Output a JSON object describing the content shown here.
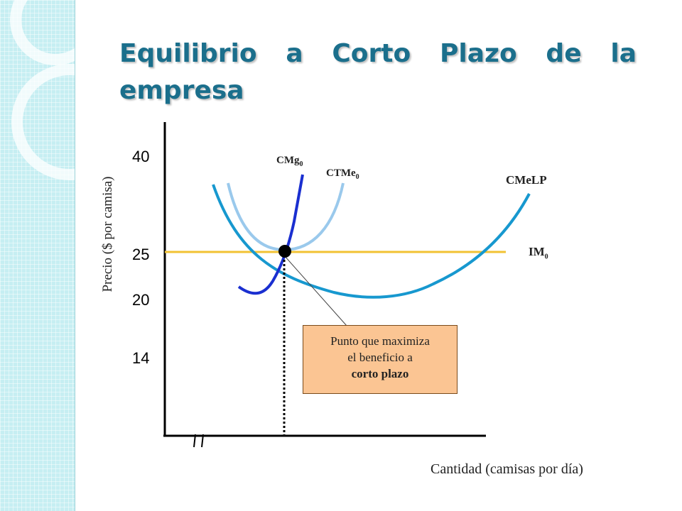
{
  "slide": {
    "title": "Equilibrio a Corto Plazo de la empresa"
  },
  "chart_data": {
    "type": "line",
    "title": "Equilibrio a Corto Plazo de la empresa",
    "xlabel": "Cantidad (camisas por día)",
    "ylabel": "Precio ($ por camisa)",
    "yticks": [
      "40",
      "25",
      "20",
      "14"
    ],
    "series": [
      {
        "name": "CMg",
        "subscript": "0",
        "color": "#1a2fd0"
      },
      {
        "name": "CTMe",
        "subscript": "0",
        "color": "#9ac9ec"
      },
      {
        "name": "CMeLP",
        "subscript": "",
        "color": "#1798cf"
      },
      {
        "name": "IM",
        "subscript": "0",
        "color": "#f2c233",
        "value": 25
      }
    ],
    "equilibrium_price": 25
  },
  "callout": {
    "line1": "Punto que maximiza",
    "line2": "el beneficio a",
    "line3": "corto plazo"
  }
}
